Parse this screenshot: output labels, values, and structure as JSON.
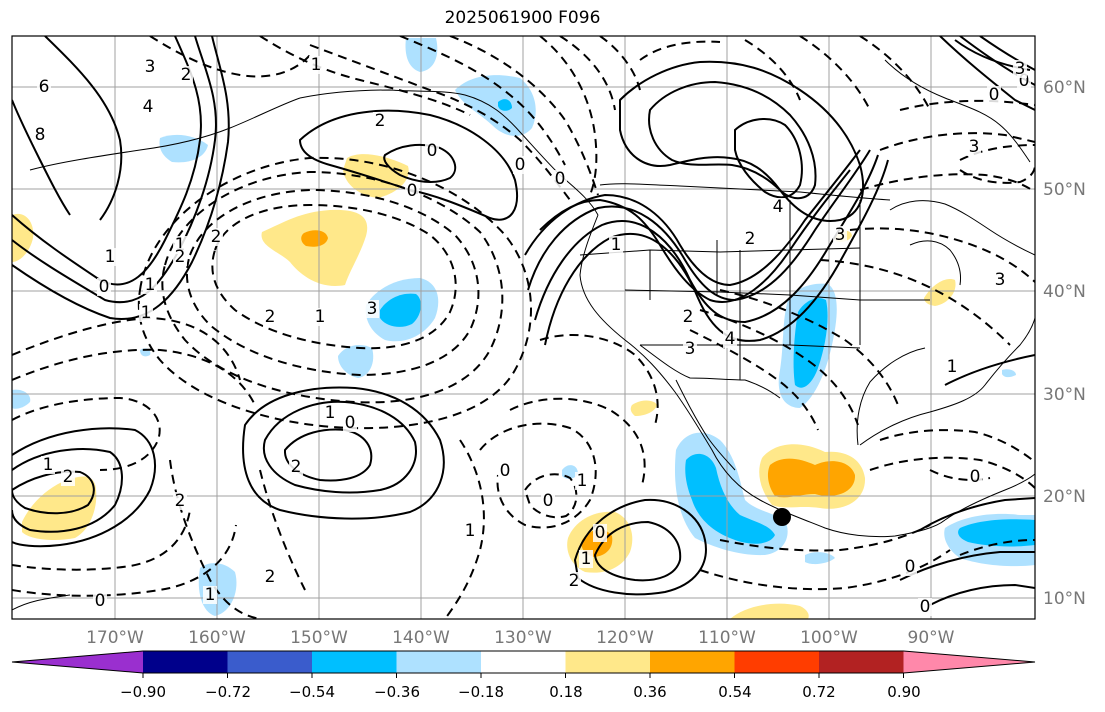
{
  "title": "2025061900 F096",
  "map": {
    "lon_range": [
      -180,
      -80
    ],
    "lat_range": [
      8,
      65
    ],
    "lon_ticks": [
      "170°W",
      "160°W",
      "150°W",
      "140°W",
      "130°W",
      "120°W",
      "110°W",
      "100°W",
      "90°W"
    ],
    "lat_ticks": [
      "10°N",
      "20°N",
      "30°N",
      "40°N",
      "50°N",
      "60°N"
    ],
    "grid": true,
    "contour_labels": [
      "6",
      "8",
      "4",
      "3",
      "2",
      "1",
      "0",
      "1",
      "2",
      "1",
      "1",
      "2",
      "0",
      "0",
      "2",
      "1",
      "2",
      "3",
      "4",
      "1",
      "2",
      "2",
      "3",
      "4",
      "3",
      "0",
      "0",
      "3",
      "3",
      "2",
      "1",
      "0",
      "1",
      "2",
      "2",
      "2",
      "1",
      "0",
      "0",
      "0",
      "1",
      "0",
      "1",
      "2",
      "1",
      "0",
      "0",
      "0",
      "1",
      "1",
      "3",
      "0",
      "0"
    ],
    "marker": {
      "type": "black-dot",
      "lon": -104.9,
      "lat": 17.9
    }
  },
  "colorbar": {
    "ticks": [
      "−0.90",
      "−0.72",
      "−0.54",
      "−0.36",
      "−0.18",
      "0.18",
      "0.36",
      "0.54",
      "0.72",
      "0.90"
    ],
    "colors": [
      "#9a2fcf",
      "#00008b",
      "#3a5ccc",
      "#00bfff",
      "#aee1ff",
      "#ffffff",
      "#ffe88a",
      "#ffa500",
      "#ff3d00",
      "#b22222",
      "#ff88aa"
    ]
  },
  "shading_colors": {
    "light_blue": "#aee1ff",
    "blue": "#00bfff",
    "yellow": "#ffe88a",
    "orange": "#ffa500"
  }
}
